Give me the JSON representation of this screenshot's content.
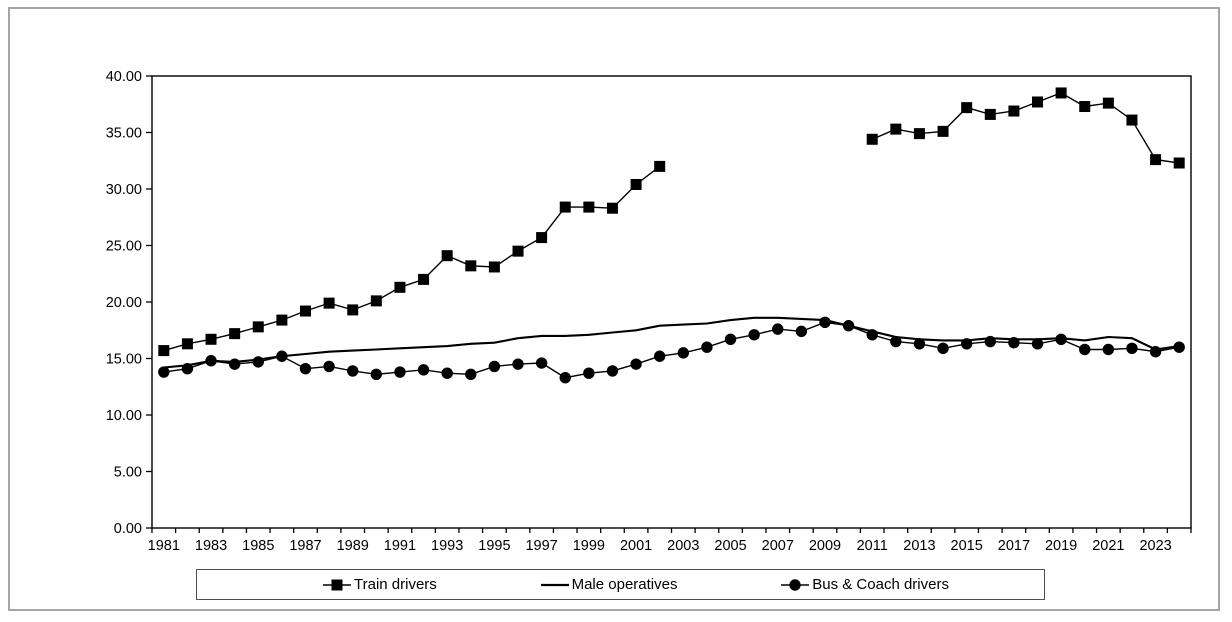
{
  "page": {
    "background_color": "#ffffff",
    "frame_border_color": "#a5a5a5",
    "series_color": "#000000"
  },
  "chart_data": {
    "type": "line",
    "title": "",
    "xlabel": "",
    "ylabel": "",
    "ylim": [
      0,
      40
    ],
    "grid": false,
    "legend_position": "bottom",
    "x": [
      1981,
      1982,
      1983,
      1984,
      1985,
      1986,
      1987,
      1988,
      1989,
      1990,
      1991,
      1992,
      1993,
      1994,
      1995,
      1996,
      1997,
      1998,
      1999,
      2000,
      2001,
      2002,
      2003,
      2004,
      2005,
      2006,
      2007,
      2008,
      2009,
      2010,
      2011,
      2012,
      2013,
      2014,
      2015,
      2016,
      2017,
      2018,
      2019,
      2020,
      2021,
      2022,
      2023,
      2024
    ],
    "x_tick_labels": [
      "1981",
      "1983",
      "1985",
      "1987",
      "1989",
      "1991",
      "1993",
      "1995",
      "1997",
      "1999",
      "2001",
      "2003",
      "2005",
      "2007",
      "2009",
      "2011",
      "2013",
      "2015",
      "2017",
      "2019",
      "2021",
      "2023"
    ],
    "y_ticks": [
      0,
      5,
      10,
      15,
      20,
      25,
      30,
      35,
      40
    ],
    "y_tick_labels": [
      "0.00",
      "5.00",
      "10.00",
      "15.00",
      "20.00",
      "25.00",
      "30.00",
      "35.00",
      "40.00"
    ],
    "draw_order": [
      1,
      0,
      2
    ],
    "series": [
      {
        "name": "Train drivers",
        "marker": "square",
        "icon": "square-marker-icon",
        "values": [
          15.7,
          16.3,
          16.7,
          17.2,
          17.8,
          18.4,
          19.2,
          19.9,
          19.3,
          20.1,
          21.3,
          22.0,
          24.1,
          23.2,
          23.1,
          24.5,
          25.7,
          28.4,
          28.4,
          28.3,
          30.4,
          32.0,
          null,
          null,
          null,
          null,
          null,
          null,
          null,
          null,
          34.4,
          35.3,
          34.9,
          35.1,
          37.2,
          36.6,
          36.9,
          37.7,
          38.5,
          37.3,
          37.6,
          36.1,
          32.6,
          32.3
        ]
      },
      {
        "name": "Male operatives",
        "marker": "none",
        "icon": "line-marker-icon",
        "values": [
          14.2,
          14.4,
          14.8,
          14.7,
          14.9,
          15.2,
          15.4,
          15.6,
          15.7,
          15.8,
          15.9,
          16.0,
          16.1,
          16.3,
          16.4,
          16.8,
          17.0,
          17.0,
          17.1,
          17.3,
          17.5,
          17.9,
          18.0,
          18.1,
          18.4,
          18.6,
          18.6,
          18.5,
          18.4,
          17.9,
          17.4,
          16.9,
          16.7,
          16.6,
          16.6,
          16.8,
          16.7,
          16.7,
          16.8,
          16.6,
          16.9,
          16.8,
          15.8,
          16.1
        ]
      },
      {
        "name": "Bus & Coach drivers",
        "marker": "circle",
        "icon": "circle-marker-icon",
        "values": [
          13.8,
          14.1,
          14.8,
          14.5,
          14.7,
          15.2,
          14.1,
          14.3,
          13.9,
          13.6,
          13.8,
          14.0,
          13.7,
          13.6,
          14.3,
          14.5,
          14.6,
          13.3,
          13.7,
          13.9,
          14.5,
          15.2,
          15.5,
          16.0,
          16.7,
          17.1,
          17.6,
          17.4,
          18.2,
          17.9,
          17.1,
          16.5,
          16.3,
          15.9,
          16.3,
          16.5,
          16.4,
          16.3,
          16.7,
          15.8,
          15.8,
          15.9,
          15.6,
          16.0
        ]
      }
    ]
  }
}
